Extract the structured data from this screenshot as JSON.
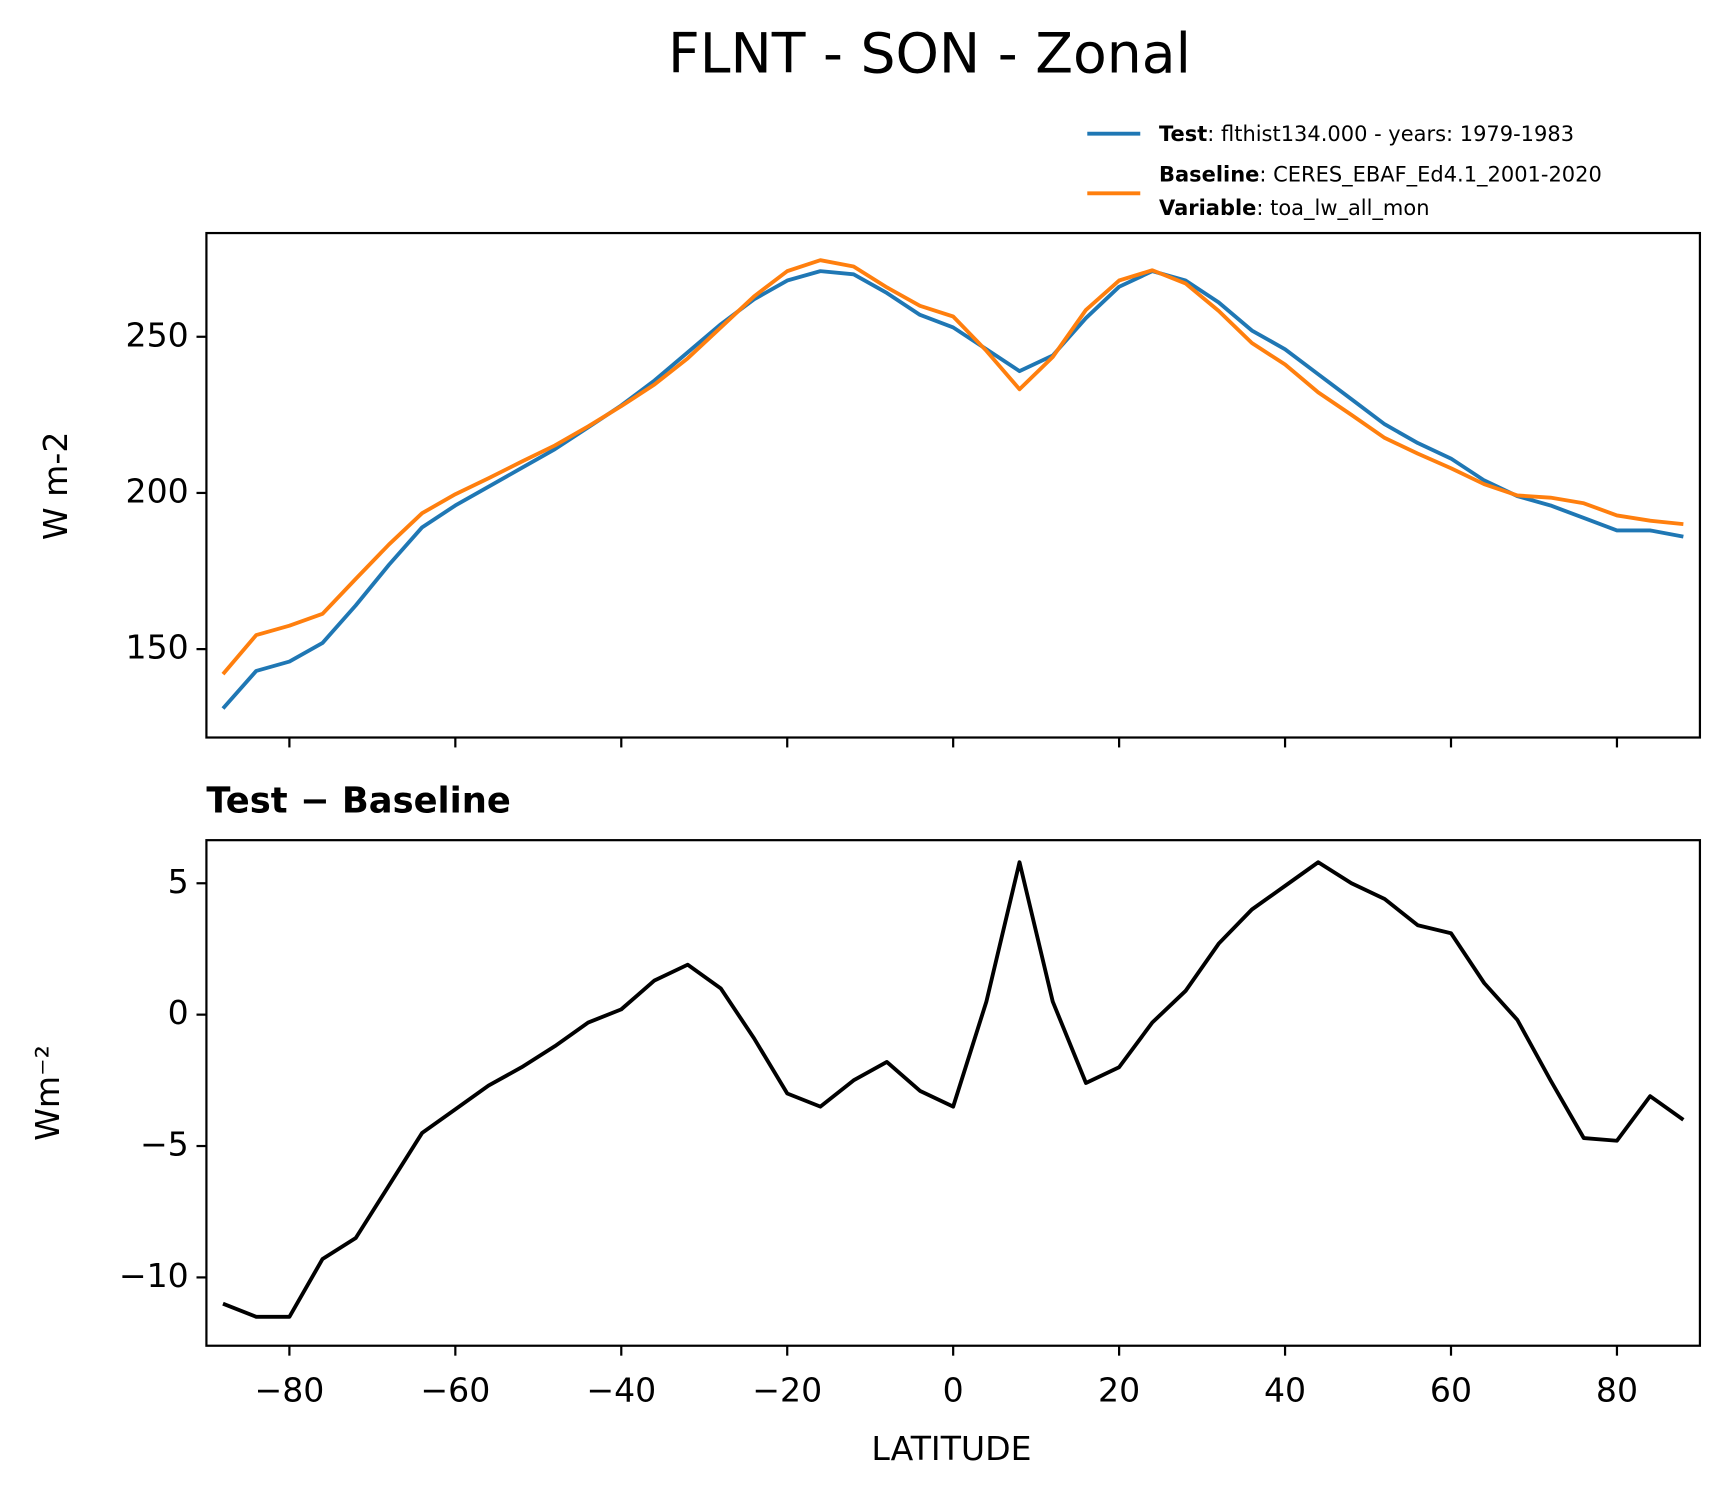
{
  "chart_data": [
    {
      "type": "line",
      "title": "FLNT - SON - Zonal",
      "ylabel": "W m-2",
      "x": [
        -88,
        -84,
        -80,
        -76,
        -72,
        -68,
        -64,
        -60,
        -56,
        -52,
        -48,
        -44,
        -40,
        -36,
        -32,
        -28,
        -24,
        -20,
        -16,
        -12,
        -8,
        -4,
        0,
        4,
        8,
        12,
        16,
        20,
        24,
        28,
        32,
        36,
        40,
        44,
        48,
        52,
        56,
        60,
        64,
        68,
        72,
        76,
        80,
        84,
        88
      ],
      "series": [
        {
          "name": "Test",
          "description": ": flthist134.000 - years: 1979-1983",
          "color": "#1f77b4",
          "values": [
            131,
            143,
            146,
            152,
            164,
            177,
            189,
            196,
            202,
            208,
            214,
            221,
            228,
            236,
            245,
            254,
            262,
            268,
            271,
            270,
            264,
            257,
            253,
            246,
            239,
            244,
            256,
            266,
            271,
            268,
            261,
            252,
            246,
            238,
            230,
            222,
            216,
            211,
            204,
            199,
            196,
            192,
            188,
            188,
            186
          ]
        },
        {
          "name": "Baseline",
          "description": ": CERES_EBAF_Ed4.1_2001-2020",
          "color": "#ff7f0e",
          "values": [
            142,
            154.5,
            157.5,
            161.3,
            172.5,
            183.5,
            193.5,
            199.6,
            204.7,
            210,
            215.2,
            221.3,
            227.8,
            234.7,
            243.1,
            253,
            262.9,
            271,
            274.5,
            272.5,
            265.8,
            259.9,
            256.5,
            245.5,
            233.2,
            243.5,
            258.6,
            268,
            271.3,
            267.1,
            258.3,
            248,
            241.1,
            232.2,
            225,
            217.6,
            212.6,
            207.9,
            202.8,
            199.2,
            198.5,
            196.7,
            192.8,
            191.1,
            190
          ]
        }
      ],
      "legend_note": {
        "label": "Variable",
        "text": ": toa_lw_all_mon"
      },
      "xlim": [
        -90,
        90
      ],
      "xticks": [
        -80,
        -60,
        -40,
        -20,
        0,
        20,
        40,
        60,
        80
      ],
      "ylim": [
        121.7,
        283.2
      ],
      "yticks": [
        150,
        200,
        250
      ]
    },
    {
      "type": "line",
      "title": "Test − Baseline",
      "ylabel": "Wm⁻²",
      "xlabel": "LATITUDE",
      "x": [
        -88,
        -84,
        -80,
        -76,
        -72,
        -68,
        -64,
        -60,
        -56,
        -52,
        -48,
        -44,
        -40,
        -36,
        -32,
        -28,
        -24,
        -20,
        -16,
        -12,
        -8,
        -4,
        0,
        4,
        8,
        12,
        16,
        20,
        24,
        28,
        32,
        36,
        40,
        44,
        48,
        52,
        56,
        60,
        64,
        68,
        72,
        76,
        80,
        84,
        88
      ],
      "series": [
        {
          "color": "#000000",
          "values": [
            -11,
            -11.5,
            -11.5,
            -9.3,
            -8.5,
            -6.5,
            -4.5,
            -3.6,
            -2.7,
            -2.0,
            -1.2,
            -0.3,
            0.2,
            1.3,
            1.9,
            1.0,
            -0.9,
            -3.0,
            -3.5,
            -2.5,
            -1.8,
            -2.9,
            -3.5,
            0.5,
            5.8,
            0.5,
            -2.6,
            -2.0,
            -0.3,
            0.9,
            2.7,
            4.0,
            4.9,
            5.8,
            5.0,
            4.4,
            3.4,
            3.1,
            1.2,
            -0.2,
            -2.5,
            -4.7,
            -4.8,
            -3.1,
            -4.0
          ]
        }
      ],
      "xlim": [
        -90,
        90
      ],
      "xticks": [
        {
          "value": -80,
          "label": "−80"
        },
        {
          "value": -60,
          "label": "−60"
        },
        {
          "value": -40,
          "label": "−40"
        },
        {
          "value": -20,
          "label": "−20"
        },
        0,
        20,
        40,
        60,
        80
      ],
      "ylim": [
        -12.6,
        6.64
      ],
      "yticks": [
        {
          "value": -10,
          "label": "−10"
        },
        {
          "value": -5,
          "label": "−5"
        },
        0,
        5
      ]
    }
  ]
}
